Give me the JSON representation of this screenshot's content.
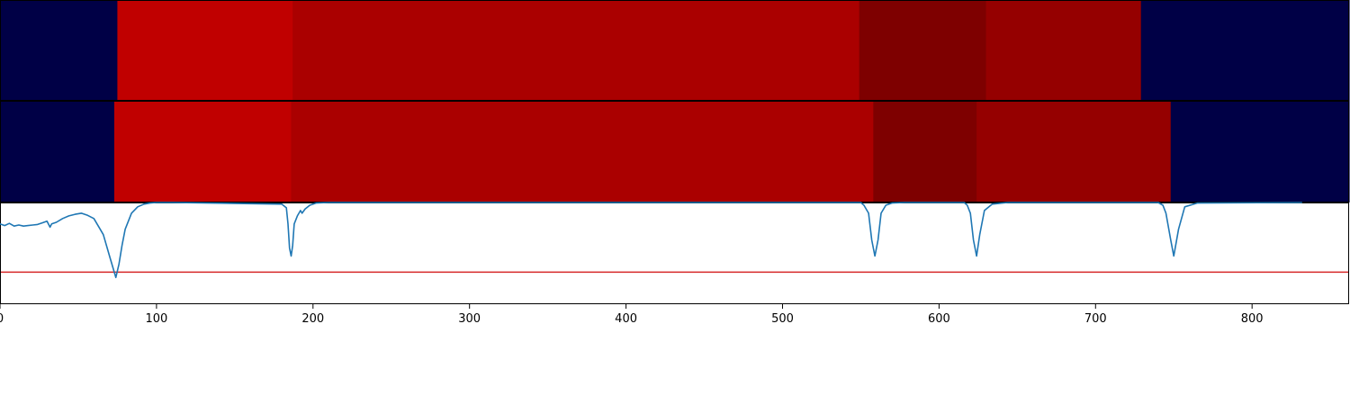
{
  "chart_data": [
    {
      "type": "heatmap",
      "panel": "top-band",
      "xlim": [
        0,
        862
      ],
      "segments": [
        {
          "start": 0,
          "end": 75,
          "color": "#000046"
        },
        {
          "start": 75,
          "end": 187,
          "color": "#c00000"
        },
        {
          "start": 187,
          "end": 549,
          "color": "#aa0000"
        },
        {
          "start": 549,
          "end": 630,
          "color": "#7e0000"
        },
        {
          "start": 630,
          "end": 729,
          "color": "#950000"
        },
        {
          "start": 729,
          "end": 862,
          "color": "#000046"
        }
      ]
    },
    {
      "type": "heatmap",
      "panel": "middle-band",
      "xlim": [
        0,
        862
      ],
      "segments": [
        {
          "start": 0,
          "end": 73,
          "color": "#000046"
        },
        {
          "start": 73,
          "end": 186,
          "color": "#c00000"
        },
        {
          "start": 186,
          "end": 558,
          "color": "#aa0000"
        },
        {
          "start": 558,
          "end": 624,
          "color": "#7e0000"
        },
        {
          "start": 624,
          "end": 748,
          "color": "#950000"
        },
        {
          "start": 748,
          "end": 862,
          "color": "#000046"
        }
      ]
    },
    {
      "type": "line",
      "panel": "signal",
      "xlim": [
        0,
        862
      ],
      "ylim": [
        -0.9,
        1.0
      ],
      "grid": false,
      "threshold": {
        "y": -0.3,
        "color": "#d62728"
      },
      "series": [
        {
          "color": "#1f77b4",
          "x": [
            0,
            3,
            6,
            9,
            12,
            15,
            18,
            21,
            24,
            27,
            30,
            32,
            33,
            36,
            40,
            44,
            48,
            52,
            56,
            60,
            64,
            66,
            70,
            72,
            74,
            76,
            78,
            80,
            84,
            88,
            92,
            96,
            100,
            110,
            180,
            183,
            184,
            185,
            186,
            187,
            188,
            190,
            192,
            193,
            195,
            198,
            202,
            210,
            550,
            552,
            555,
            557,
            559,
            561,
            563,
            566,
            570,
            578,
            616,
            618,
            620,
            622,
            624,
            626,
            629,
            634,
            644,
            740,
            743,
            745,
            748,
            750,
            753,
            757,
            765,
            832
          ],
          "y": [
            0.6,
            0.57,
            0.61,
            0.56,
            0.58,
            0.56,
            0.57,
            0.58,
            0.59,
            0.62,
            0.65,
            0.54,
            0.6,
            0.63,
            0.7,
            0.75,
            0.78,
            0.8,
            0.76,
            0.7,
            0.5,
            0.4,
            0.0,
            -0.2,
            -0.4,
            -0.15,
            0.2,
            0.5,
            0.8,
            0.92,
            0.97,
            0.99,
            1.0,
            1.0,
            0.97,
            0.9,
            0.6,
            0.15,
            0.0,
            0.2,
            0.6,
            0.75,
            0.85,
            0.8,
            0.88,
            0.95,
            0.99,
            1.0,
            1.0,
            0.95,
            0.8,
            0.3,
            0.0,
            0.3,
            0.8,
            0.95,
            0.99,
            1.0,
            1.0,
            0.95,
            0.8,
            0.3,
            0.0,
            0.4,
            0.85,
            0.97,
            1.0,
            1.0,
            0.95,
            0.8,
            0.3,
            0.0,
            0.5,
            0.92,
            0.99,
            1.0
          ]
        }
      ]
    }
  ],
  "xaxis": {
    "ticks": [
      0,
      100,
      200,
      300,
      400,
      500,
      600,
      700,
      800
    ],
    "tick_labels": [
      "0",
      "100",
      "200",
      "300",
      "400",
      "500",
      "600",
      "700",
      "800"
    ]
  }
}
